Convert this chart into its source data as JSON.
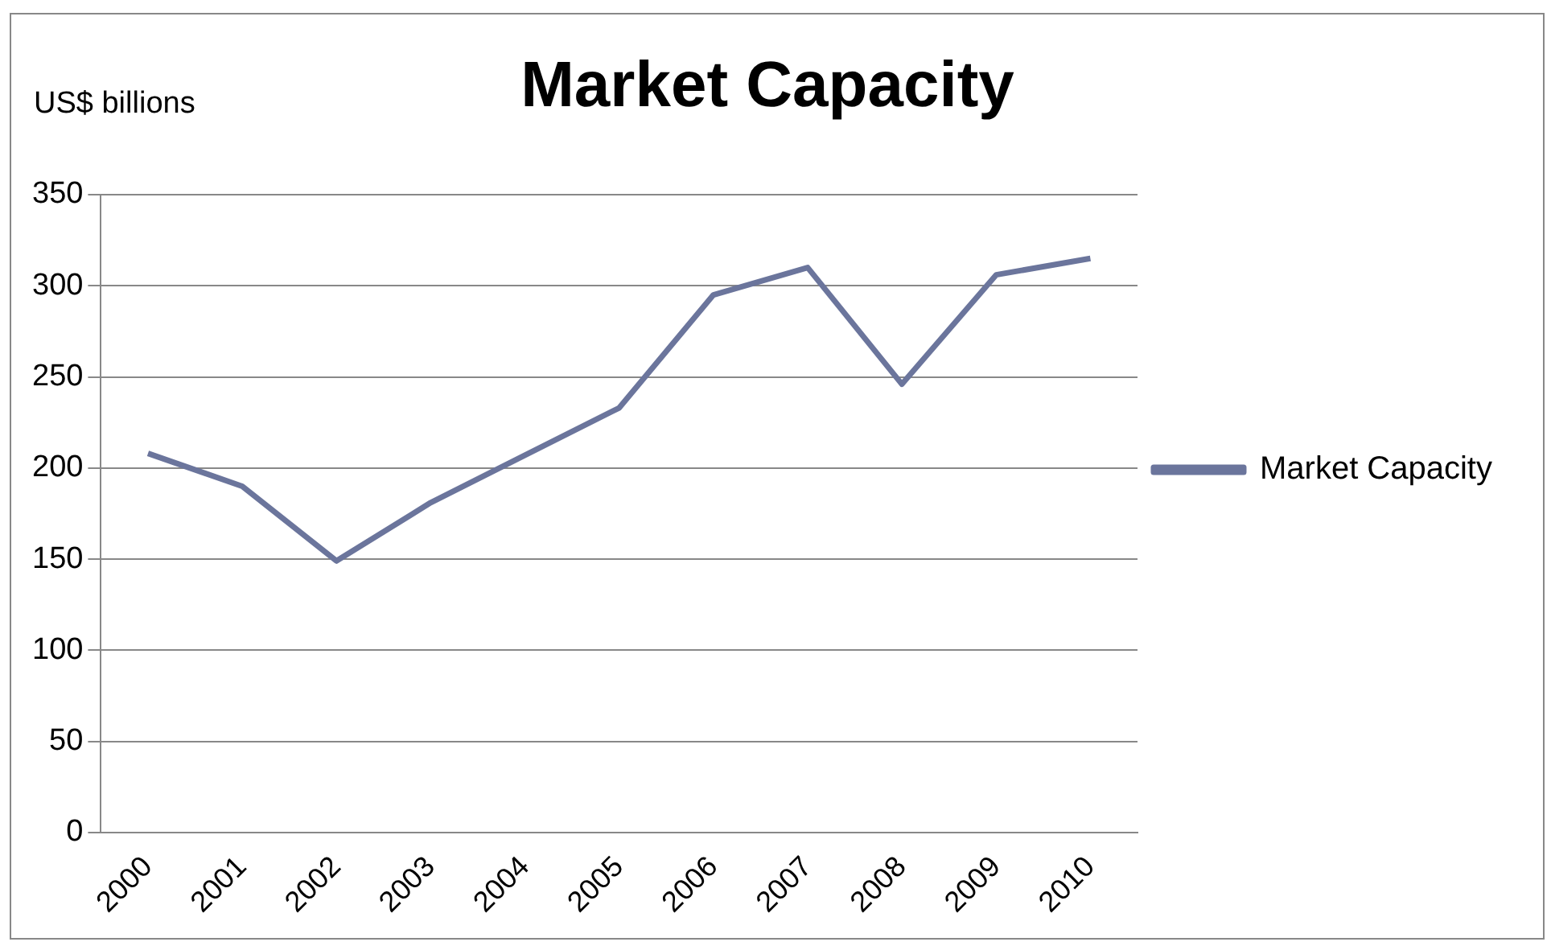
{
  "chart_data": {
    "type": "line",
    "title": "Market Capacity",
    "ylabel": "US$ billions",
    "categories": [
      "2000",
      "2001",
      "2002",
      "2003",
      "2004",
      "2005",
      "2006",
      "2007",
      "2008",
      "2009",
      "2010"
    ],
    "series": [
      {
        "name": "Market Capacity",
        "color": "#6b759c",
        "values": [
          208,
          190,
          149,
          181,
          207,
          233,
          295,
          310,
          246,
          306,
          315
        ]
      }
    ],
    "ylim": [
      0,
      350
    ],
    "yticks": [
      0,
      50,
      100,
      150,
      200,
      250,
      300,
      350
    ],
    "grid": "y",
    "legend": "right",
    "marker": "none",
    "line_style": "solid"
  }
}
